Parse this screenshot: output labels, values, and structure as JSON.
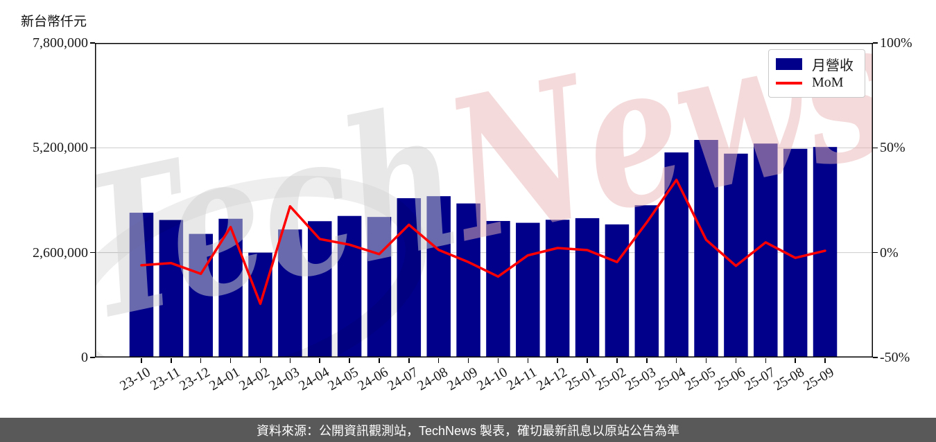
{
  "chart": {
    "axis_unit_label": "新台幣仟元",
    "watermark": {
      "part1": "Tech",
      "part2": "News"
    },
    "legend": {
      "items": [
        {
          "label": "月營收",
          "swatch": "bar",
          "color": "#00008b"
        },
        {
          "label": "MoM",
          "swatch": "line",
          "color": "#ff0000"
        }
      ]
    },
    "left_axis": {
      "tick_labels_top_to_bottom": [
        "7,800,000",
        "5,200,000",
        "2,600,000",
        "0"
      ]
    },
    "right_axis": {
      "tick_labels_top_to_bottom": [
        "100%",
        "50%",
        "0%",
        "-50%"
      ]
    }
  },
  "chart_data": {
    "type": "bar",
    "title": "",
    "categories": [
      "23-10",
      "23-11",
      "23-12",
      "24-01",
      "24-02",
      "24-03",
      "24-04",
      "24-05",
      "24-06",
      "24-07",
      "24-08",
      "24-09",
      "24-10",
      "24-11",
      "24-12",
      "25-01",
      "25-02",
      "25-03",
      "25-04",
      "25-05",
      "25-06",
      "25-07",
      "25-08",
      "25-09"
    ],
    "series": [
      {
        "name": "月營收",
        "type": "bar",
        "yaxis": "left",
        "unit": "新台幣仟元",
        "color": "#00008b",
        "values": [
          3590000,
          3410000,
          3065000,
          3440000,
          2600000,
          3175000,
          3380000,
          3510000,
          3485000,
          3950000,
          4000000,
          3820000,
          3385000,
          3340000,
          3415000,
          3455000,
          3300000,
          3775000,
          5085000,
          5395000,
          5055000,
          5305000,
          5175000,
          5220000
        ]
      },
      {
        "name": "MoM",
        "type": "line",
        "yaxis": "right",
        "unit": "%",
        "color": "#ff0000",
        "values": [
          -6.0,
          -5.0,
          -10.1,
          12.2,
          -24.4,
          22.1,
          6.5,
          3.8,
          -0.7,
          13.3,
          1.3,
          -4.5,
          -11.4,
          -1.3,
          2.2,
          1.2,
          -4.5,
          14.4,
          34.7,
          6.1,
          -6.3,
          4.9,
          -2.5,
          0.9
        ]
      }
    ],
    "left_ylim": [
      0,
      7800000
    ],
    "left_ticks": [
      0,
      2600000,
      5200000,
      7800000
    ],
    "right_ylim": [
      -50,
      100
    ],
    "right_ticks": [
      -50,
      0,
      50,
      100
    ],
    "grid": "horizontal",
    "legend_position": "upper right"
  },
  "footer": {
    "text": "資料來源：公開資訊觀測站，TechNews 製表，確切最新訊息以原站公告為準"
  }
}
